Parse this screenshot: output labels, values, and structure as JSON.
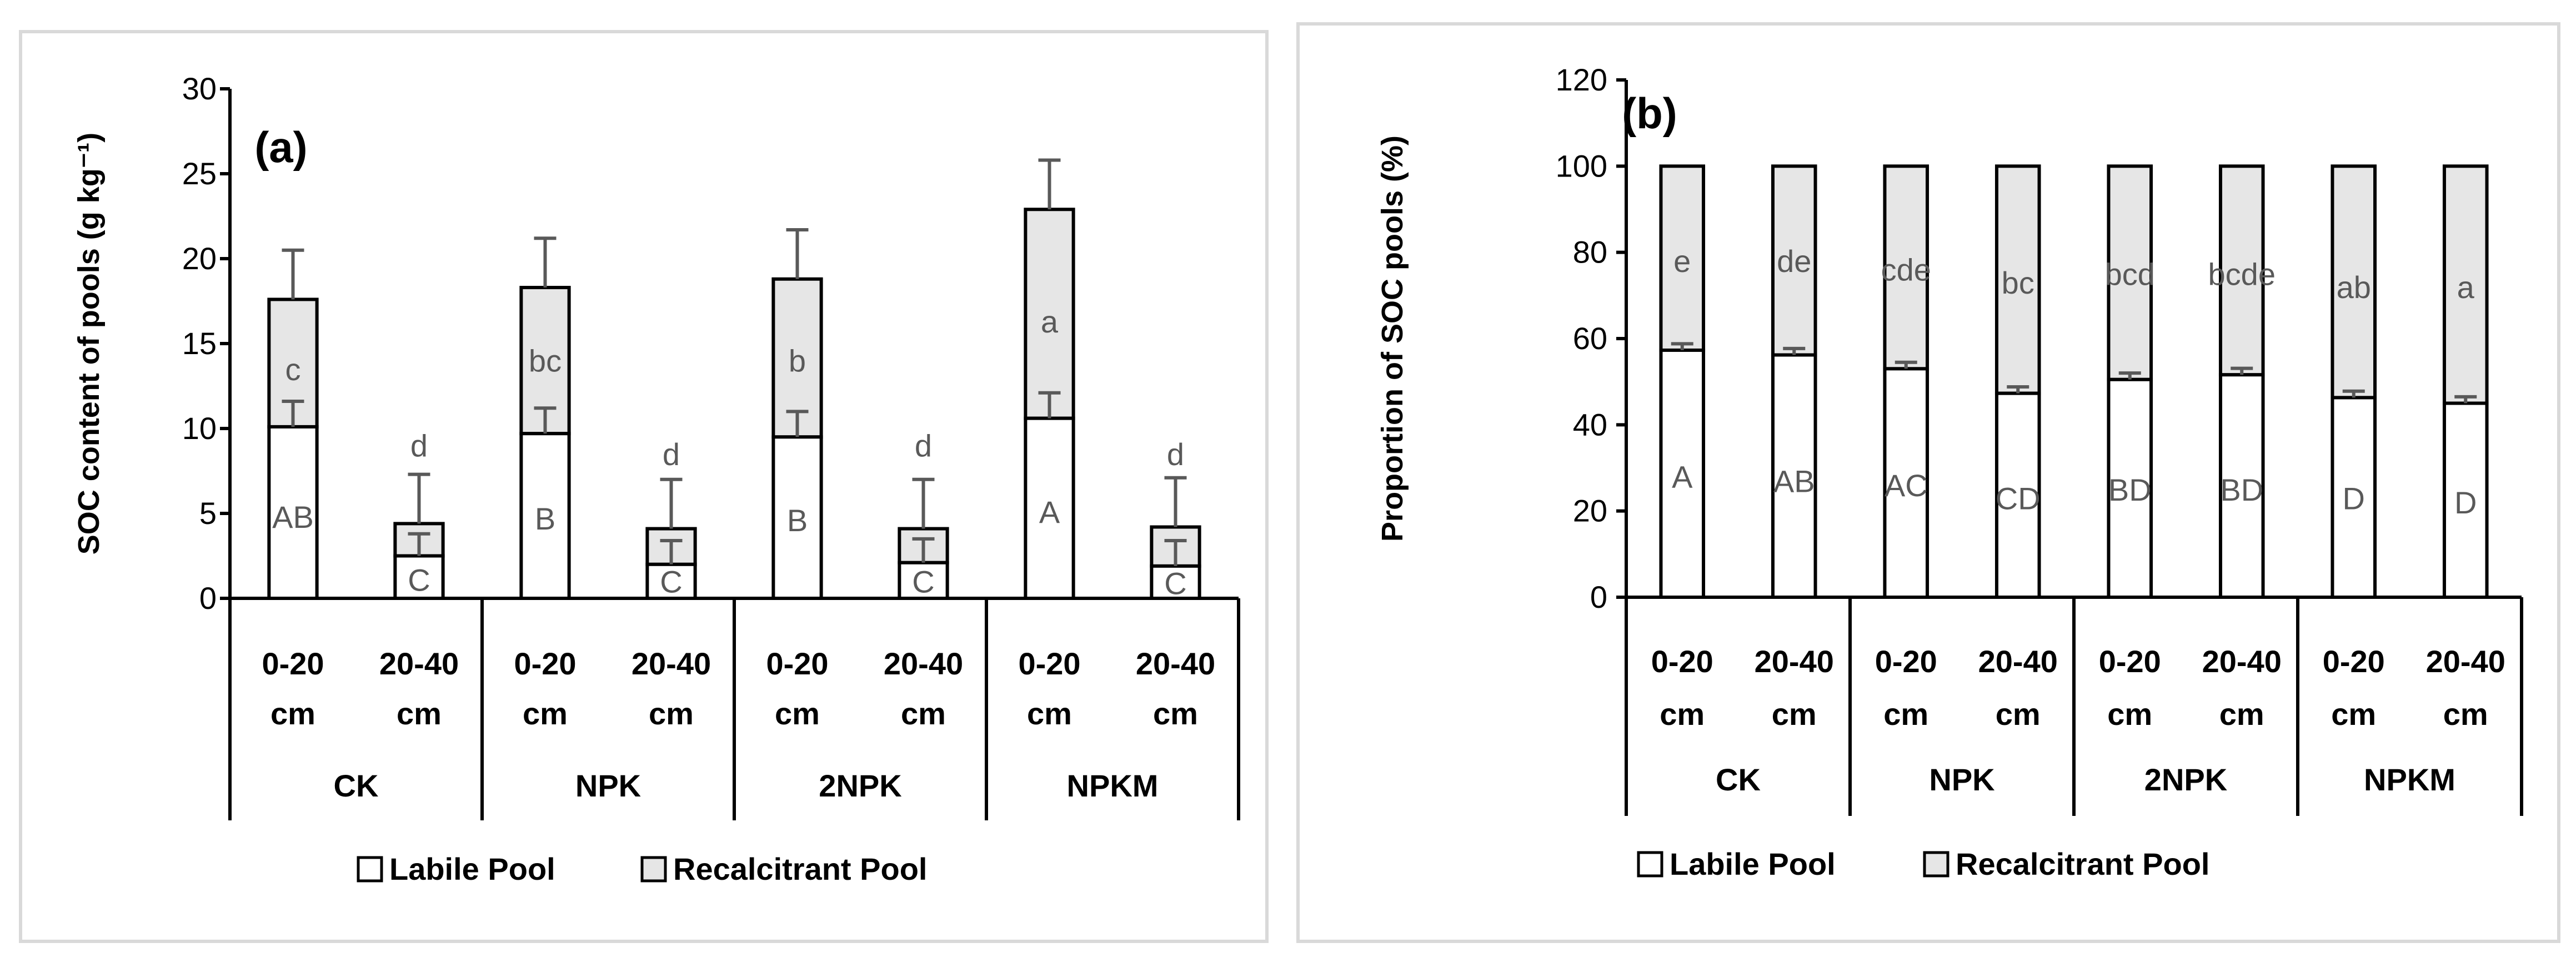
{
  "chart_data": [
    {
      "type": "bar",
      "stacked": true,
      "panel_label": "(a)",
      "title": "",
      "ylabel": "SOC content of pools (g kg⁻¹)",
      "ylim": [
        0,
        30
      ],
      "yticks": [
        0,
        5,
        10,
        15,
        20,
        25,
        30
      ],
      "groups": [
        "CK",
        "NPK",
        "2NPK",
        "NPKM"
      ],
      "categories": [
        "0-20 cm",
        "20-40 cm",
        "0-20 cm",
        "20-40 cm",
        "0-20 cm",
        "20-40 cm",
        "0-20 cm",
        "20-40 cm"
      ],
      "series": [
        {
          "name": "Labile Pool",
          "color": "#ffffff",
          "values": [
            10.1,
            2.5,
            9.7,
            2.0,
            9.5,
            2.1,
            10.6,
            1.9
          ],
          "errors": [
            1.5,
            1.3,
            1.5,
            1.4,
            1.5,
            1.4,
            1.5,
            1.5
          ],
          "letters": [
            "AB",
            "C",
            "B",
            "C",
            "B",
            "C",
            "A",
            "C"
          ],
          "label_y": [
            4.8,
            1.1,
            4.7,
            1.0,
            4.6,
            1.0,
            5.1,
            0.9
          ]
        },
        {
          "name": "Recalcitrant Pool",
          "color": "#e6e6e6",
          "values": [
            7.5,
            1.9,
            8.6,
            2.1,
            9.3,
            2.0,
            12.3,
            2.3
          ],
          "errors": [
            2.9,
            2.9,
            2.9,
            2.9,
            2.9,
            2.9,
            2.9,
            2.9
          ],
          "letters": [
            "c",
            "d",
            "bc",
            "d",
            "b",
            "d",
            "a",
            "d"
          ],
          "label_y": [
            13.5,
            9.0,
            14.0,
            8.5,
            14.0,
            9.0,
            16.3,
            8.5
          ]
        }
      ],
      "legend": [
        "Labile Pool",
        "Recalcitrant Pool"
      ],
      "legend_position": "bottom"
    },
    {
      "type": "bar",
      "stacked": true,
      "panel_label": "(b)",
      "title": "",
      "ylabel": "Proportion of SOC pools (%)",
      "ylim": [
        0,
        120
      ],
      "yticks": [
        0,
        20,
        40,
        60,
        80,
        100,
        120
      ],
      "groups": [
        "CK",
        "NPK",
        "2NPK",
        "NPKM"
      ],
      "categories": [
        "0-20 cm",
        "20-40 cm",
        "0-20 cm",
        "20-40 cm",
        "0-20 cm",
        "20-40 cm",
        "0-20 cm",
        "20-40 cm"
      ],
      "series": [
        {
          "name": "Labile Pool",
          "color": "#ffffff",
          "values": [
            57.3,
            56.2,
            53.0,
            47.3,
            50.5,
            51.6,
            46.3,
            45.0
          ],
          "errors": [
            1.5,
            1.5,
            1.5,
            1.5,
            1.5,
            1.5,
            1.5,
            1.5
          ],
          "letters": [
            "A",
            "AB",
            "AC",
            "CD",
            "BD",
            "BD",
            "D",
            "D"
          ],
          "label_y": [
            28,
            27,
            26,
            23,
            25,
            25,
            23,
            22
          ]
        },
        {
          "name": "Recalcitrant Pool",
          "color": "#e6e6e6",
          "values": [
            42.7,
            43.8,
            47.0,
            52.7,
            49.5,
            48.4,
            53.7,
            55.0
          ],
          "errors": [
            0,
            0,
            0,
            0,
            0,
            0,
            0,
            0
          ],
          "letters": [
            "e",
            "de",
            "cde",
            "bc",
            "bcd",
            "bcde",
            "ab",
            "a"
          ],
          "label_y": [
            78,
            78,
            76,
            73,
            75,
            75,
            72,
            72
          ]
        }
      ],
      "legend": [
        "Labile Pool",
        "Recalcitrant Pool"
      ],
      "legend_position": "bottom"
    }
  ]
}
